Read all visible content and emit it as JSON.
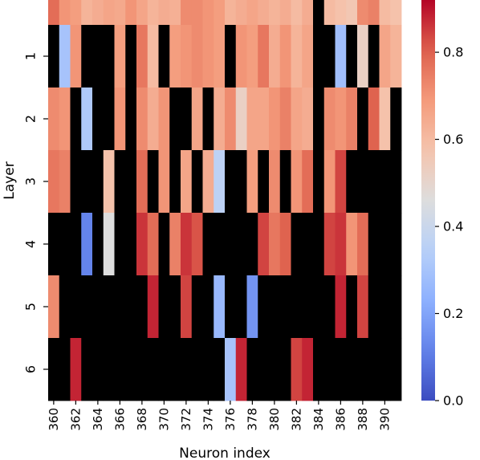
{
  "chart_data": {
    "type": "heatmap",
    "title": "",
    "xlabel": "Neuron index",
    "ylabel": "Layer",
    "x_first": 360,
    "x_count": 32,
    "xticks": [
      "360",
      "362",
      "364",
      "366",
      "368",
      "370",
      "372",
      "374",
      "376",
      "378",
      "380",
      "382",
      "384",
      "386",
      "388",
      "390"
    ],
    "rows": [
      {
        "label": "",
        "values": [
          0.78,
          0.7,
          0.68,
          0.62,
          0.64,
          0.66,
          0.65,
          0.7,
          0.66,
          0.62,
          0.64,
          0.63,
          0.72,
          0.72,
          0.7,
          0.68,
          0.62,
          0.64,
          0.66,
          0.64,
          0.62,
          0.64,
          0.6,
          0.64,
          null,
          0.6,
          0.58,
          0.56,
          0.72,
          0.74,
          0.6,
          0.58
        ]
      },
      {
        "label": "1",
        "values": [
          null,
          0.3,
          0.7,
          null,
          null,
          null,
          0.68,
          null,
          0.76,
          0.6,
          null,
          0.68,
          0.7,
          0.72,
          0.7,
          0.68,
          null,
          0.7,
          0.68,
          0.76,
          0.64,
          0.7,
          0.62,
          0.66,
          null,
          null,
          0.28,
          null,
          0.52,
          null,
          0.66,
          0.62
        ]
      },
      {
        "label": "2",
        "values": [
          0.72,
          0.7,
          null,
          0.32,
          null,
          null,
          0.7,
          null,
          0.72,
          0.64,
          0.7,
          null,
          null,
          0.66,
          null,
          0.64,
          0.72,
          0.52,
          0.66,
          0.66,
          0.7,
          0.74,
          0.66,
          0.64,
          null,
          0.72,
          0.7,
          0.74,
          null,
          0.8,
          0.58,
          null
        ]
      },
      {
        "label": "3",
        "values": [
          0.76,
          0.74,
          null,
          null,
          null,
          0.58,
          null,
          null,
          0.78,
          null,
          0.7,
          null,
          0.66,
          null,
          0.64,
          0.36,
          null,
          null,
          0.68,
          null,
          0.72,
          null,
          0.7,
          0.78,
          null,
          0.7,
          0.84,
          null,
          null,
          null,
          null,
          null
        ]
      },
      {
        "label": "4",
        "values": [
          null,
          null,
          null,
          0.12,
          null,
          0.46,
          null,
          null,
          0.86,
          0.78,
          null,
          0.74,
          0.86,
          0.82,
          null,
          null,
          null,
          null,
          null,
          0.84,
          0.76,
          0.8,
          null,
          null,
          null,
          0.84,
          0.86,
          0.7,
          0.78,
          null,
          null,
          null
        ]
      },
      {
        "label": "5",
        "values": [
          0.72,
          null,
          null,
          null,
          null,
          null,
          null,
          null,
          null,
          0.88,
          null,
          null,
          0.84,
          null,
          null,
          0.26,
          null,
          null,
          0.16,
          null,
          null,
          null,
          null,
          null,
          null,
          null,
          0.88,
          null,
          0.84,
          null,
          null,
          null
        ]
      },
      {
        "label": "6",
        "values": [
          null,
          null,
          0.88,
          null,
          null,
          null,
          null,
          null,
          null,
          null,
          null,
          null,
          null,
          null,
          null,
          null,
          0.3,
          0.88,
          null,
          null,
          null,
          null,
          0.84,
          0.88,
          null,
          null,
          null,
          null,
          null,
          null,
          null,
          null
        ]
      }
    ],
    "missing_color": "#000000",
    "colorbar": {
      "colormap": "coolwarm",
      "range": [
        0,
        0.92
      ],
      "ticks": [
        0.0,
        0.2,
        0.4,
        0.6,
        0.8
      ],
      "tick_labels": [
        "0.0",
        "0.2",
        "0.4",
        "0.6",
        "0.8"
      ]
    }
  }
}
